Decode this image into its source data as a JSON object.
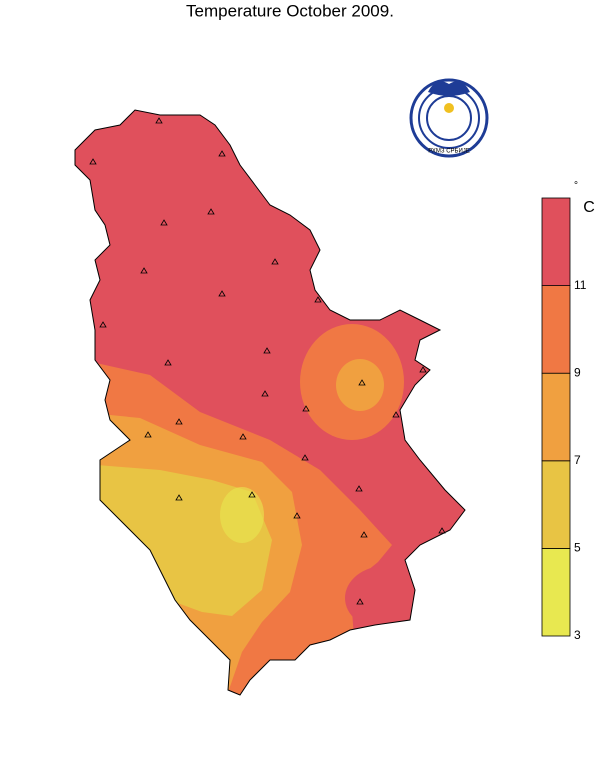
{
  "title": "Temperature October 2009.",
  "logo": {
    "text": "РХМЗ СРБИЈЕ"
  },
  "legend": {
    "unit_symbol": "°",
    "unit": "C",
    "range": [
      3,
      13
    ],
    "levels": [
      3,
      5,
      7,
      9,
      11
    ],
    "colors": [
      "#e8e850",
      "#e8c444",
      "#f0a040",
      "#f07844",
      "#e0505c"
    ]
  }
}
